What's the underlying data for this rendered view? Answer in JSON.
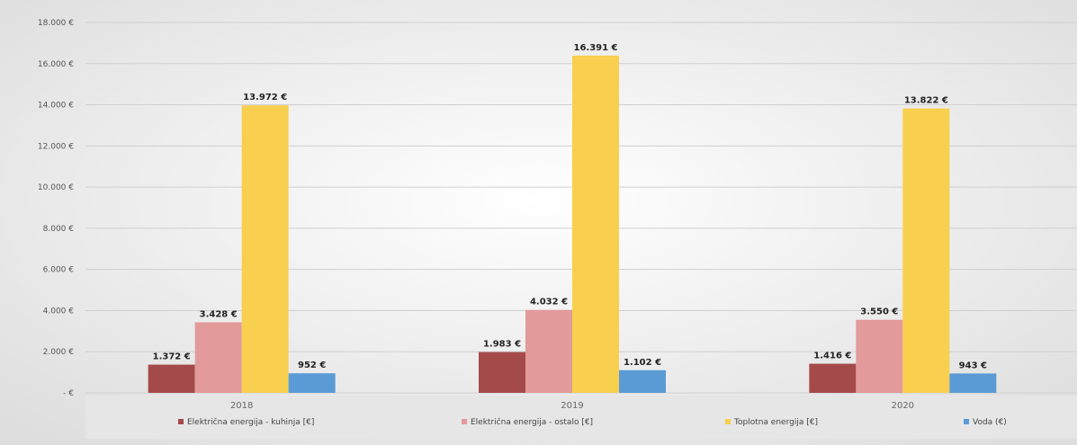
{
  "chart_data": {
    "type": "bar",
    "categories": [
      "2018",
      "2019",
      "2020"
    ],
    "series": [
      {
        "name": "Električna energija - kuhinja [€]",
        "values": [
          1372,
          1983,
          1416
        ],
        "labels": [
          "1.372 €",
          "1.983 €",
          "1.416 €"
        ],
        "color": "#a54a4a"
      },
      {
        "name": "Električna energija - ostalo [€]",
        "values": [
          3428,
          4032,
          3550
        ],
        "labels": [
          "3.428 €",
          "4.032 €",
          "3.550 €"
        ],
        "color": "#e29a9a"
      },
      {
        "name": "Toplotna energija [€]",
        "values": [
          13972,
          16391,
          13822
        ],
        "labels": [
          "13.972 €",
          "16.391 €",
          "13.822 €"
        ],
        "color": "#f8cf4e"
      },
      {
        "name": "Voda (€)",
        "values": [
          952,
          1102,
          943
        ],
        "labels": [
          "952 €",
          "1.102 €",
          "943 €"
        ],
        "color": "#5b9bd5"
      }
    ],
    "yticks": [
      {
        "value": 0,
        "label": "-  €"
      },
      {
        "value": 2000,
        "label": "2.000 €"
      },
      {
        "value": 4000,
        "label": "4.000 €"
      },
      {
        "value": 6000,
        "label": "6.000 €"
      },
      {
        "value": 8000,
        "label": "8.000 €"
      },
      {
        "value": 10000,
        "label": "10.000 €"
      },
      {
        "value": 12000,
        "label": "12.000 €"
      },
      {
        "value": 14000,
        "label": "14.000 €"
      },
      {
        "value": 16000,
        "label": "16.000 €"
      },
      {
        "value": 18000,
        "label": "18.000 €"
      }
    ],
    "ylim": [
      0,
      18000
    ],
    "grid": true,
    "legend_position": "bottom",
    "title": "",
    "xlabel": "",
    "ylabel": ""
  }
}
